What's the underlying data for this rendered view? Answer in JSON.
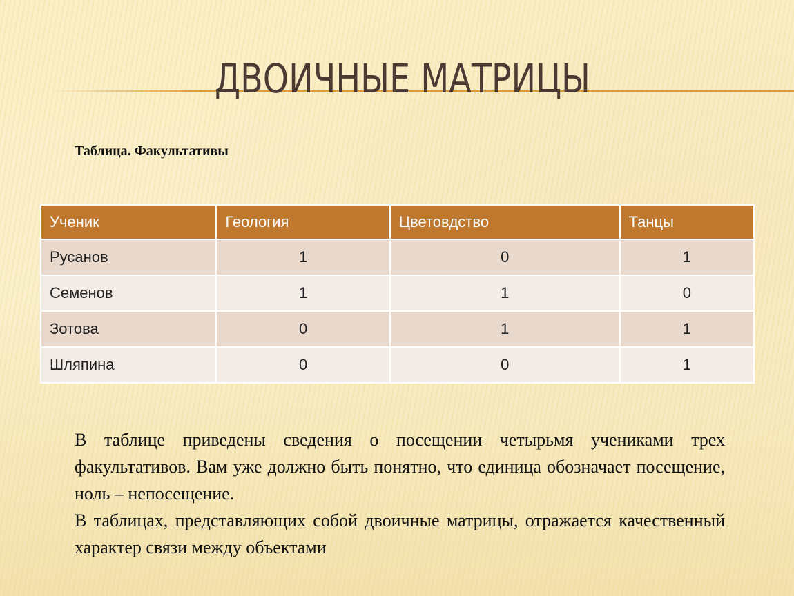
{
  "title": "ДВОИЧНЫЕ МАТРИЦЫ",
  "caption": "Таблица. Факультативы",
  "table": {
    "headers": [
      "Ученик",
      "Геология",
      "Цветовдство",
      "Танцы"
    ],
    "rows": [
      [
        "Русанов",
        "1",
        "0",
        "1"
      ],
      [
        "Семенов",
        "1",
        "1",
        "0"
      ],
      [
        "Зотова",
        "0",
        "1",
        "1"
      ],
      [
        "Шляпина",
        "0",
        "0",
        "1"
      ]
    ]
  },
  "paragraphs": [
    "В таблице приведены сведения о посещении четырьмя учениками трех факультативов. Вам уже должно быть понятно, что единица обозначает посещение, ноль – непосещение.",
    "В таблицах, представляющих собой двоичные матрицы, отражается качественный характер связи между объектами"
  ],
  "colors": {
    "header": "#c0782e",
    "row_odd": "#e9d8cc",
    "row_even": "#f3ebe6",
    "title": "#4a3a33"
  }
}
